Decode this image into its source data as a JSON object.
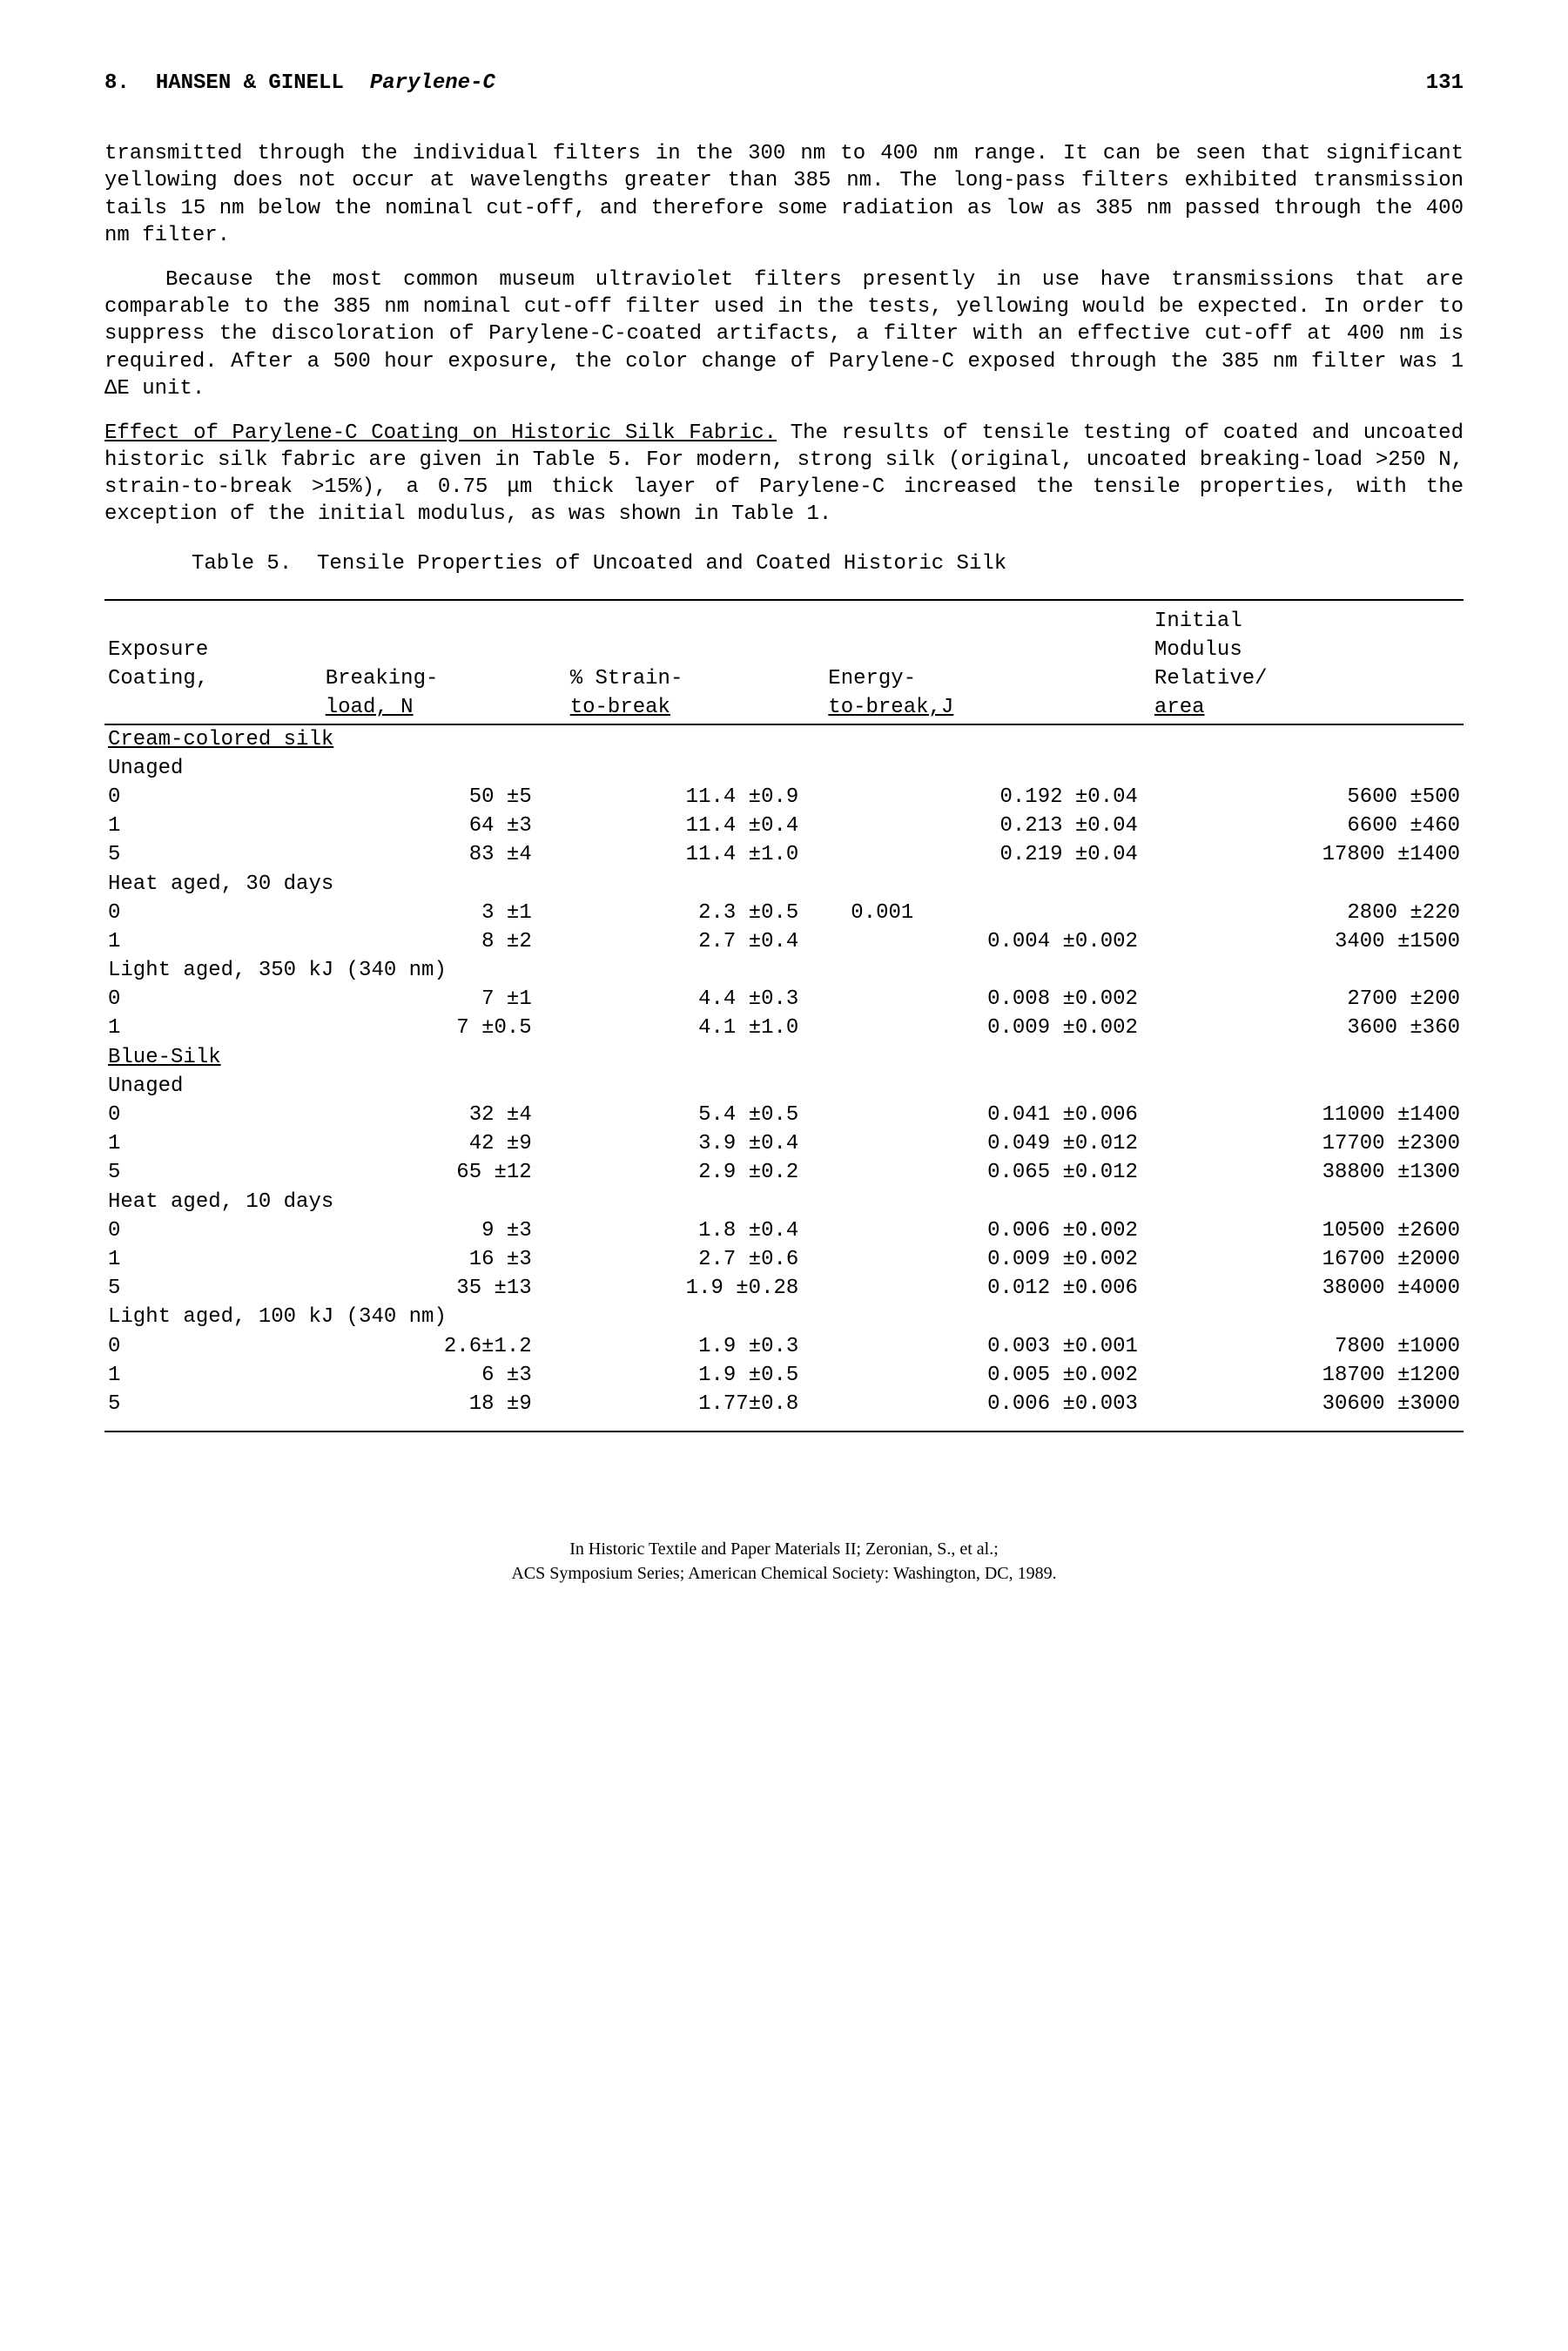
{
  "header": {
    "chapter_num": "8.",
    "authors": "HANSEN & GINELL",
    "title": "Parylene-C",
    "page": "131"
  },
  "para1": "transmitted through the individual filters in the 300 nm to 400 nm range.  It can be seen that significant yellowing does not occur at wavelengths greater than 385 nm.  The long-pass filters exhibited transmission tails 15 nm below the nominal cut-off, and therefore some radiation as low as 385 nm passed through the 400 nm filter.",
  "para2": "Because the most common museum ultraviolet filters presently in use have transmissions that are comparable to the 385 nm nominal cut-off filter used in the tests, yellowing would be expected. In order to suppress the discoloration of Parylene-C-coated artifacts, a filter with an effective cut-off at 400 nm is required.  After a 500 hour exposure, the color change of Parylene-C exposed through the 385 nm filter was 1 ΔE unit.",
  "section_heading": "Effect of Parylene-C Coating on Historic Silk Fabric.",
  "para3": "  The results of tensile testing of coated and uncoated historic silk fabric are given in Table 5.  For modern, strong silk (original, uncoated breaking-load  >250 N, strain-to-break >15%), a 0.75 μm thick layer of Parylene-C increased the tensile properties, with the exception of the initial modulus, as was shown in Table 1.",
  "table": {
    "caption_prefix": "Table 5.",
    "caption": "Tensile Properties of Uncoated and Coated Historic Silk",
    "headers": {
      "h1_1": "Exposure",
      "h1_2": "Coating,",
      "h2_1": "Breaking-",
      "h2_2": "load, N",
      "h3_1": "% Strain-",
      "h3_2": "to-break",
      "h4_1": "Energy-",
      "h4_2": "to-break,J",
      "h5_0": "Initial",
      "h5_1": "Modulus",
      "h5_2": "Relative/",
      "h5_3": "area"
    },
    "section_cream": "Cream-colored silk",
    "section_blue": "Blue-Silk",
    "sub_unaged": "Unaged",
    "sub_heat30": "Heat aged, 30 days",
    "sub_light350": "Light aged, 350 kJ (340 nm)",
    "sub_heat10": "Heat aged, 10 days",
    "sub_light100": "Light aged, 100 kJ (340 nm)",
    "rows": {
      "cream_unaged": [
        {
          "c": "0",
          "b": "50 ±5",
          "s": "11.4 ±0.9",
          "e": "0.192 ±0.04",
          "m": "5600 ±500"
        },
        {
          "c": "1",
          "b": "64 ±3",
          "s": "11.4 ±0.4",
          "e": "0.213 ±0.04",
          "m": "6600 ±460"
        },
        {
          "c": "5",
          "b": "83 ±4",
          "s": "11.4 ±1.0",
          "e": "0.219 ±0.04",
          "m": "17800 ±1400"
        }
      ],
      "cream_heat30": [
        {
          "c": "0",
          "b": "3 ±1",
          "s": "2.3 ±0.5",
          "e": "0.001",
          "m": "2800 ±220"
        },
        {
          "c": "1",
          "b": "8 ±2",
          "s": "2.7 ±0.4",
          "e": "0.004 ±0.002",
          "m": "3400 ±1500"
        }
      ],
      "cream_light350": [
        {
          "c": "0",
          "b": "7 ±1",
          "s": "4.4 ±0.3",
          "e": "0.008 ±0.002",
          "m": "2700 ±200"
        },
        {
          "c": "1",
          "b": "7 ±0.5",
          "s": "4.1 ±1.0",
          "e": "0.009 ±0.002",
          "m": "3600 ±360"
        }
      ],
      "blue_unaged": [
        {
          "c": "0",
          "b": "32 ±4",
          "s": "5.4 ±0.5",
          "e": "0.041 ±0.006",
          "m": "11000 ±1400"
        },
        {
          "c": "1",
          "b": "42 ±9",
          "s": "3.9 ±0.4",
          "e": "0.049 ±0.012",
          "m": "17700 ±2300"
        },
        {
          "c": "5",
          "b": "65 ±12",
          "s": "2.9 ±0.2",
          "e": "0.065 ±0.012",
          "m": "38800 ±1300"
        }
      ],
      "blue_heat10": [
        {
          "c": "0",
          "b": "9 ±3",
          "s": "1.8 ±0.4",
          "e": "0.006 ±0.002",
          "m": "10500 ±2600"
        },
        {
          "c": "1",
          "b": "16 ±3",
          "s": "2.7 ±0.6",
          "e": "0.009 ±0.002",
          "m": "16700 ±2000"
        },
        {
          "c": "5",
          "b": "35 ±13",
          "s": "1.9 ±0.28",
          "e": "0.012 ±0.006",
          "m": "38000 ±4000"
        }
      ],
      "blue_light100": [
        {
          "c": "0",
          "b": "2.6±1.2",
          "s": "1.9 ±0.3",
          "e": "0.003 ±0.001",
          "m": "7800 ±1000"
        },
        {
          "c": "1",
          "b": "6 ±3",
          "s": "1.9 ±0.5",
          "e": "0.005 ±0.002",
          "m": "18700 ±1200"
        },
        {
          "c": "5",
          "b": "18 ±9",
          "s": "1.77±0.8",
          "e": "0.006 ±0.003",
          "m": "30600 ±3000"
        }
      ]
    }
  },
  "footer": {
    "line1": "In Historic Textile and Paper Materials II; Zeronian, S., et al.;",
    "line2": "ACS Symposium Series; American Chemical Society: Washington, DC, 1989."
  }
}
